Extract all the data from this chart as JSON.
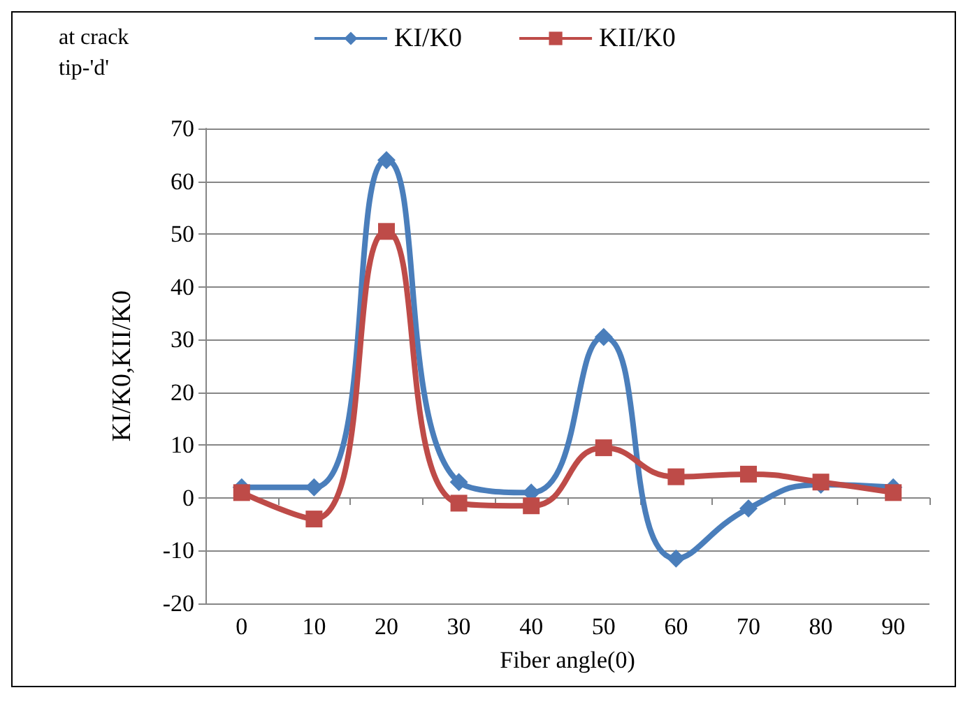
{
  "chart_data": {
    "type": "line",
    "title": "at crack tip-'d'",
    "xlabel": "Fiber angle(0)",
    "ylabel": "KI/K0,KII/K0",
    "categories": [
      "0",
      "10",
      "20",
      "30",
      "40",
      "50",
      "60",
      "70",
      "80",
      "90"
    ],
    "series": [
      {
        "name": "KI/K0",
        "color": "#4a7ebb",
        "marker": "diamond",
        "values": [
          2,
          2,
          64,
          3,
          1,
          30.5,
          -11.5,
          -2,
          2.5,
          2
        ]
      },
      {
        "name": "KII/K0",
        "color": "#be4b48",
        "marker": "square",
        "values": [
          1,
          -4,
          50.5,
          -1,
          -1.5,
          9.5,
          4,
          4.5,
          3,
          1
        ]
      }
    ],
    "ylim": [
      -20,
      70
    ],
    "yticks": [
      -20,
      -10,
      0,
      10,
      20,
      30,
      40,
      50,
      60,
      70
    ],
    "grid": "y",
    "legend": "top"
  }
}
